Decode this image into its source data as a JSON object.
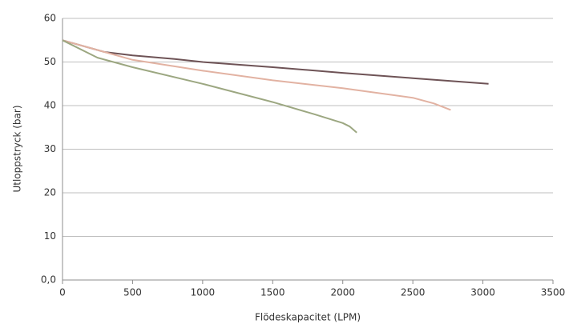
{
  "chart_data": {
    "type": "line",
    "x_label": "Flödeskapacitet (LPM)",
    "y_label": "Utloppstryck (bar)",
    "xlim": [
      0,
      3500
    ],
    "xticks": [
      0,
      500,
      1000,
      1500,
      2000,
      2500,
      3000,
      3500
    ],
    "ylim": [
      0,
      60
    ],
    "yticks": [
      {
        "value": 0,
        "label": "0,0"
      },
      10,
      20,
      30,
      40,
      50,
      60
    ],
    "grid": true,
    "series": [
      {
        "color": "#6e5356",
        "x": [
          0,
          300,
          500,
          800,
          1000,
          1500,
          2000,
          2500,
          3040
        ],
        "values": [
          55,
          52.3,
          51.5,
          50.7,
          50,
          48.8,
          47.5,
          46.3,
          45
        ]
      },
      {
        "color": "#e2b2a2",
        "x": [
          0,
          500,
          1000,
          1500,
          2000,
          2500,
          2650,
          2770
        ],
        "values": [
          55,
          50.5,
          48,
          45.8,
          44,
          41.8,
          40.5,
          39
        ]
      },
      {
        "color": "#9ca781",
        "x": [
          0,
          250,
          500,
          1000,
          1500,
          1800,
          2000,
          2050,
          2100
        ],
        "values": [
          55,
          51,
          48.8,
          45,
          40.8,
          38,
          36,
          35.2,
          33.8
        ]
      }
    ]
  }
}
